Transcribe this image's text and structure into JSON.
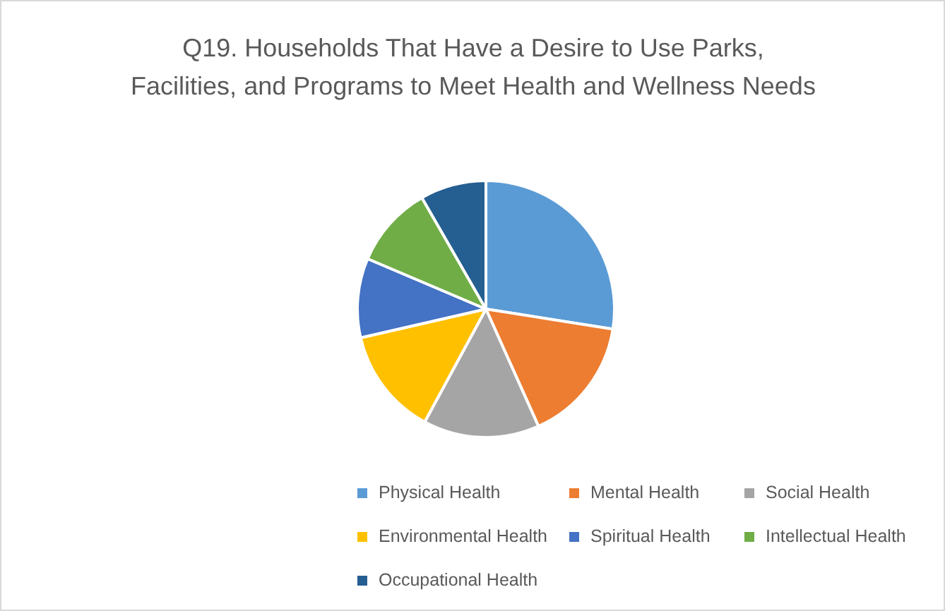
{
  "chart_data": {
    "type": "pie",
    "title": "Q19. Households That Have a Desire to Use Parks, Facilities, and Programs to Meet Health and Wellness Needs",
    "categories": [
      "Physical Health",
      "Mental Health",
      "Social Health",
      "Environmental Health",
      "Spiritual Health",
      "Intellectual Health",
      "Occupational Health"
    ],
    "values": [
      27.5,
      15.8,
      14.6,
      13.5,
      10,
      10.3,
      8.3
    ],
    "colors": [
      "#5b9bd5",
      "#ed7d31",
      "#a5a5a5",
      "#ffc000",
      "#4472c4",
      "#70ad47",
      "#255e91"
    ],
    "legend": "bottom"
  }
}
